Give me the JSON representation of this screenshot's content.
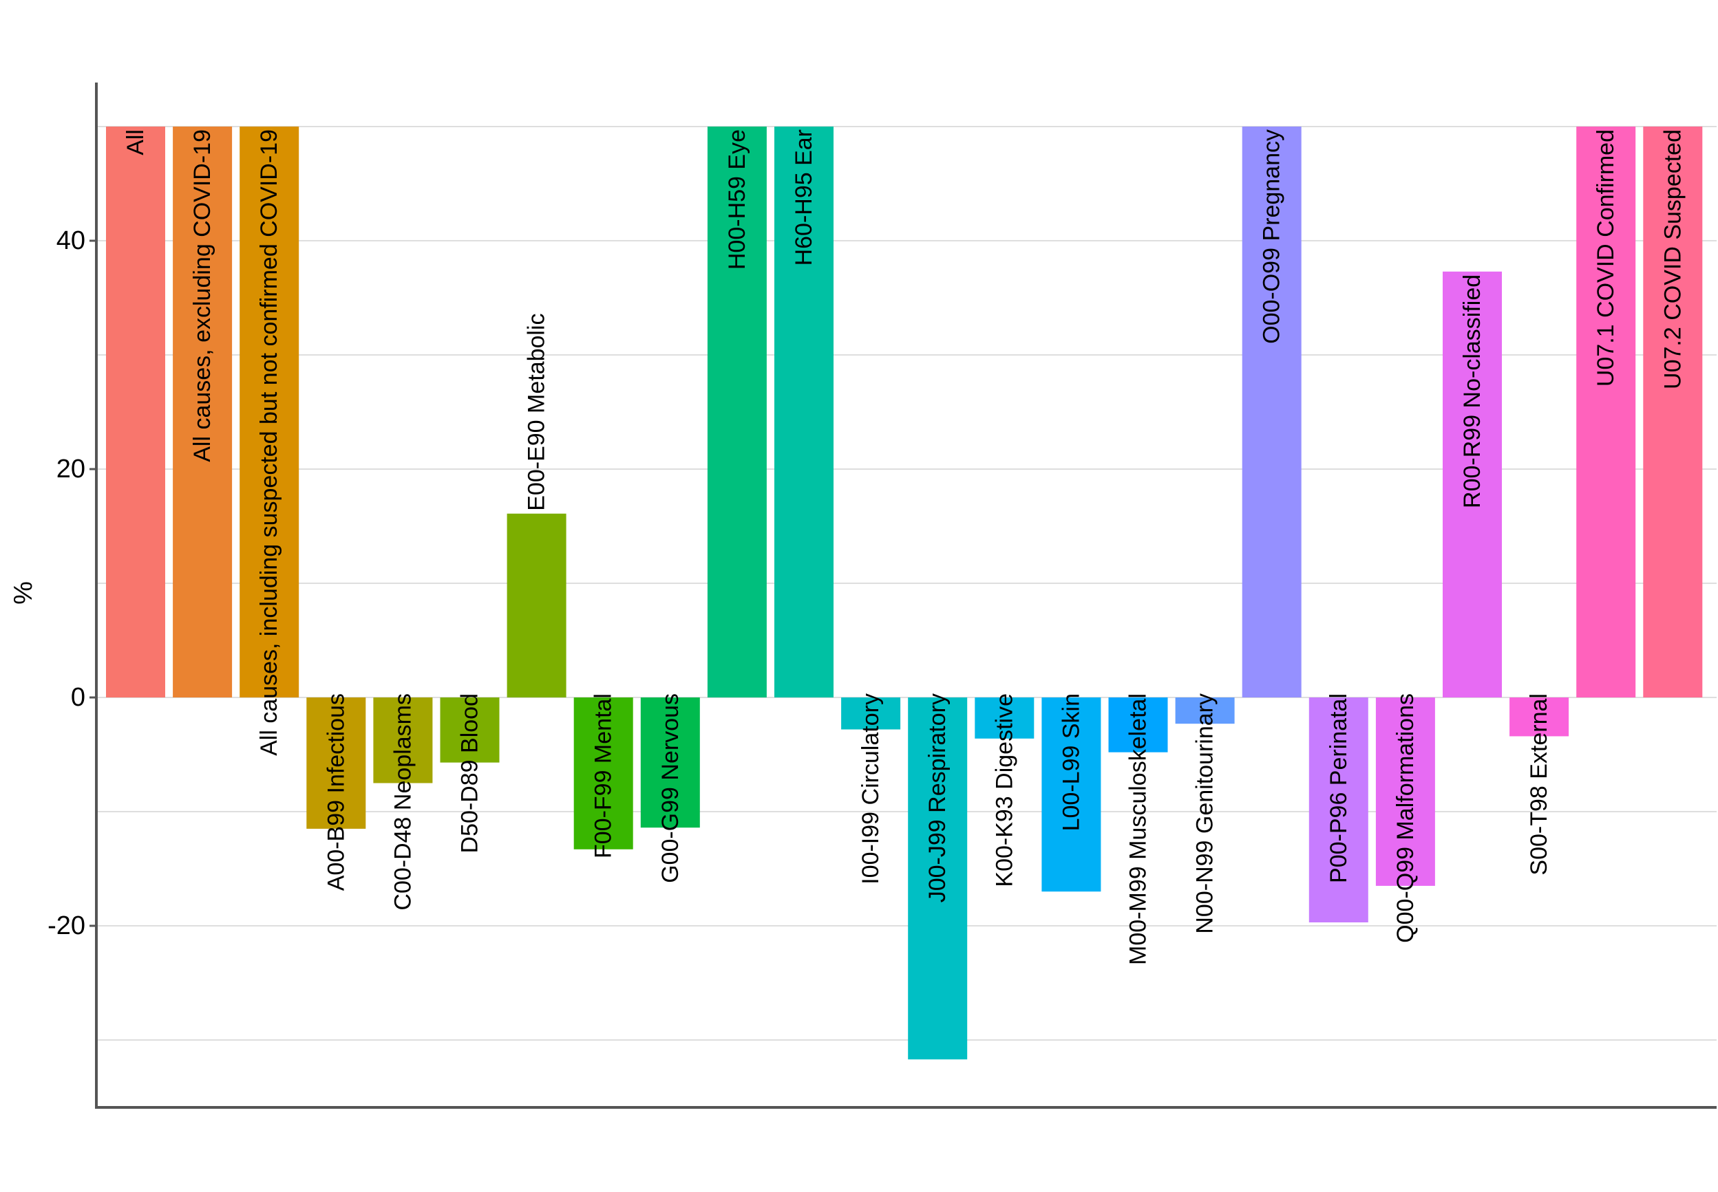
{
  "chart_data": {
    "type": "bar",
    "title": "",
    "xlabel": "",
    "ylabel": "%",
    "ylim": [
      -35,
      52
    ],
    "yticks": [
      -20,
      0,
      20,
      40
    ],
    "ytick_labels": [
      "-20",
      "0",
      "20",
      "40"
    ],
    "minor_gridlines": [
      -30,
      -10,
      10,
      30,
      50
    ],
    "grid": true,
    "legend": "none",
    "categories": [
      "All",
      "All causes, excluding COVID-19",
      "All causes, including suspected but not confirmed COVID-19",
      "A00-B99 Infectious",
      "C00-D48 Neoplasms",
      "D50-D89 Blood",
      "E00-E90 Metabolic",
      "F00-F99 Mental",
      "G00-G99 Nervous",
      "H00-H59 Eye",
      "H60-H95 Ear",
      "I00-I99 Circulatory",
      "J00-J99 Respiratory",
      "K00-K93 Digestive",
      "L00-L99 Skin",
      "M00-M99 Musculoskeletal",
      "N00-N99 Genitourinary",
      "O00-O99 Pregnancy",
      "P00-P96 Perinatal",
      "Q00-Q99 Malformations",
      "R00-R99 No-classified",
      "S00-T98 External",
      "U07.1 COVID Confirmed",
      "U07.2 COVID Suspected"
    ],
    "values": [
      50,
      50,
      50,
      -11.5,
      -7.5,
      -5.7,
      16.1,
      -13.3,
      -11.4,
      50,
      50,
      -2.8,
      -31.7,
      -3.6,
      -17.0,
      -4.8,
      -2.3,
      50,
      -19.7,
      -16.5,
      37.3,
      -3.4,
      50,
      50
    ],
    "colors": [
      "#F8766D",
      "#EA8331",
      "#D89000",
      "#C09B00",
      "#A3A500",
      "#7CAE00",
      "#7CAE00",
      "#39B600",
      "#00BB4E",
      "#00BF7D",
      "#00C1A3",
      "#00BFC4",
      "#00BFC4",
      "#00B8E5",
      "#00B0F6",
      "#00A5FF",
      "#619CFF",
      "#9590FF",
      "#C77CFF",
      "#E76BF3",
      "#E76BF3",
      "#FA62DB",
      "#FF62BC",
      "#FF6C91"
    ],
    "label_position": [
      "inside-top",
      "inside-top",
      "inside-top",
      "below-start",
      "below-start",
      "below-start",
      "above",
      "below-start",
      "below-start",
      "inside-top",
      "inside-top",
      "below-start",
      "below-start",
      "below-start",
      "below-start",
      "below-start",
      "below-start",
      "inside-top",
      "below-start",
      "below-start",
      "inside-top",
      "below-start",
      "inside-top",
      "inside-top"
    ]
  }
}
